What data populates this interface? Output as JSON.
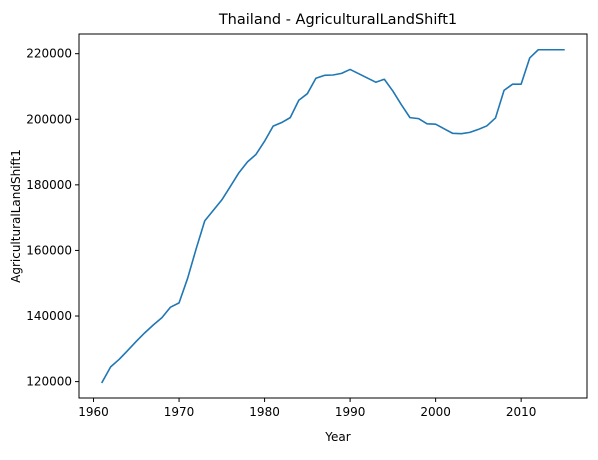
{
  "chart_data": {
    "type": "line",
    "title": "Thailand - AgriculturalLandShift1",
    "xlabel": "Year",
    "ylabel": "AgriculturalLandShift1",
    "xlim": [
      1958.3,
      2017.7
    ],
    "ylim": [
      115000,
      226000
    ],
    "xticks": [
      1960,
      1970,
      1980,
      1990,
      2000,
      2010
    ],
    "yticks": [
      120000,
      140000,
      160000,
      180000,
      200000,
      220000
    ],
    "grid": false,
    "legend": "none",
    "colors": {
      "line": "#1f77b4"
    },
    "series": [
      {
        "x": [
          1961,
          1962,
          1963,
          1964,
          1965,
          1966,
          1967,
          1968,
          1969,
          1970,
          1971,
          1972,
          1973,
          1974,
          1975,
          1976,
          1977,
          1978,
          1979,
          1980,
          1981,
          1982,
          1983,
          1984,
          1985,
          1986,
          1987,
          1988,
          1989,
          1990,
          1991,
          1992,
          1993,
          1994,
          1995,
          1996,
          1997,
          1998,
          1999,
          2000,
          2001,
          2002,
          2003,
          2004,
          2005,
          2006,
          2007,
          2008,
          2009,
          2010,
          2011,
          2012,
          2013,
          2014,
          2015
        ],
        "values": [
          119800,
          124500,
          126800,
          129500,
          132300,
          134900,
          137300,
          139500,
          142700,
          144000,
          151500,
          160500,
          169000,
          172200,
          175400,
          179500,
          183700,
          187000,
          189300,
          193300,
          197900,
          199000,
          200500,
          205800,
          207800,
          212500,
          213400,
          213500,
          214000,
          215200,
          213900,
          212600,
          211300,
          212200,
          208600,
          204400,
          200500,
          200200,
          198600,
          198500,
          197100,
          195700,
          195600,
          196000,
          196900,
          198000,
          200400,
          208800,
          210700,
          210700,
          218700,
          221200,
          221200,
          221200,
          221200
        ]
      }
    ]
  }
}
